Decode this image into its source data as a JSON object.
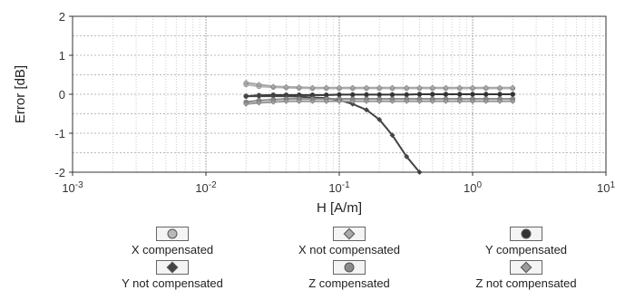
{
  "chart_data": {
    "type": "line",
    "xscale": "log",
    "xlim": [
      0.001,
      10
    ],
    "ylim": [
      -2,
      2
    ],
    "xlabel": "H [A/m]",
    "ylabel": "Error [dB]",
    "x_tick_labels": [
      {
        "base": "10",
        "exp": "-3"
      },
      {
        "base": "10",
        "exp": "-2"
      },
      {
        "base": "10",
        "exp": "-1"
      },
      {
        "base": "10",
        "exp": "0"
      },
      {
        "base": "10",
        "exp": "1"
      }
    ],
    "y_tick_labels": [
      "2",
      "1",
      "0",
      "-1",
      "-2"
    ],
    "y_ticks": [
      2,
      1,
      0,
      -1,
      -2
    ],
    "grid": true,
    "legend_position": "bottom",
    "series": [
      {
        "name": "X compensated",
        "marker": "circle",
        "color": "#b8b8b8",
        "x": [
          0.02,
          0.025,
          0.032,
          0.04,
          0.05,
          0.063,
          0.08,
          0.1,
          0.126,
          0.16,
          0.2,
          0.25,
          0.32,
          0.4,
          0.5,
          0.63,
          0.8,
          1,
          1.26,
          1.6,
          2
        ],
        "y": [
          0.25,
          0.2,
          0.18,
          0.17,
          0.16,
          0.15,
          0.15,
          0.15,
          0.15,
          0.15,
          0.15,
          0.15,
          0.15,
          0.15,
          0.15,
          0.15,
          0.15,
          0.15,
          0.15,
          0.15,
          0.15
        ]
      },
      {
        "name": "X not compensated",
        "marker": "diamond",
        "color": "#a8a8a8",
        "x": [
          0.02,
          0.025,
          0.032,
          0.04,
          0.05,
          0.063,
          0.08,
          0.1,
          0.126,
          0.16,
          0.2,
          0.25,
          0.32,
          0.4,
          0.5,
          0.63,
          0.8,
          1,
          1.26,
          1.6,
          2
        ],
        "y": [
          0.3,
          0.25,
          0.2,
          0.19,
          0.18,
          0.17,
          0.17,
          0.17,
          0.17,
          0.17,
          0.17,
          0.17,
          0.17,
          0.17,
          0.17,
          0.17,
          0.17,
          0.17,
          0.17,
          0.17,
          0.17
        ]
      },
      {
        "name": "Y compensated",
        "marker": "circle",
        "color": "#333333",
        "x": [
          0.02,
          0.025,
          0.032,
          0.04,
          0.05,
          0.063,
          0.08,
          0.1,
          0.126,
          0.16,
          0.2,
          0.25,
          0.32,
          0.4,
          0.5,
          0.63,
          0.8,
          1,
          1.26,
          1.6,
          2
        ],
        "y": [
          -0.05,
          -0.03,
          -0.02,
          -0.02,
          -0.02,
          -0.02,
          -0.02,
          -0.01,
          -0.01,
          -0.01,
          -0.01,
          -0.01,
          -0.01,
          0,
          0,
          0,
          0,
          0,
          0,
          0,
          0
        ]
      },
      {
        "name": "Y not compensated",
        "marker": "diamond",
        "color": "#444444",
        "x": [
          0.02,
          0.025,
          0.032,
          0.04,
          0.05,
          0.063,
          0.08,
          0.1,
          0.126,
          0.16,
          0.2,
          0.25,
          0.32,
          0.4
        ],
        "y": [
          -0.05,
          -0.05,
          -0.05,
          -0.05,
          -0.06,
          -0.08,
          -0.1,
          -0.15,
          -0.25,
          -0.4,
          -0.65,
          -1.05,
          -1.6,
          -2
        ]
      },
      {
        "name": "Z compensated",
        "marker": "circle",
        "color": "#8a8a8a",
        "x": [
          0.02,
          0.025,
          0.032,
          0.04,
          0.05,
          0.063,
          0.08,
          0.1,
          0.126,
          0.16,
          0.2,
          0.25,
          0.32,
          0.4,
          0.5,
          0.63,
          0.8,
          1,
          1.26,
          1.6,
          2
        ],
        "y": [
          -0.2,
          -0.16,
          -0.14,
          -0.12,
          -0.12,
          -0.12,
          -0.12,
          -0.12,
          -0.12,
          -0.12,
          -0.12,
          -0.12,
          -0.12,
          -0.12,
          -0.12,
          -0.12,
          -0.12,
          -0.12,
          -0.12,
          -0.12,
          -0.12
        ]
      },
      {
        "name": "Z not compensated",
        "marker": "diamond",
        "color": "#9a9a9a",
        "x": [
          0.02,
          0.025,
          0.032,
          0.04,
          0.05,
          0.063,
          0.08,
          0.1,
          0.126,
          0.16,
          0.2,
          0.25,
          0.32,
          0.4,
          0.5,
          0.63,
          0.8,
          1,
          1.26,
          1.6,
          2
        ],
        "y": [
          -0.25,
          -0.22,
          -0.2,
          -0.18,
          -0.18,
          -0.18,
          -0.18,
          -0.18,
          -0.18,
          -0.18,
          -0.18,
          -0.18,
          -0.18,
          -0.18,
          -0.18,
          -0.18,
          -0.18,
          -0.18,
          -0.18,
          -0.18,
          -0.18
        ]
      }
    ]
  },
  "legend": {
    "items": [
      {
        "label": "X compensated",
        "marker": "circle",
        "color": "#b8b8b8"
      },
      {
        "label": "X not compensated",
        "marker": "diamond",
        "color": "#a8a8a8"
      },
      {
        "label": "Y compensated",
        "marker": "circle",
        "color": "#333333"
      },
      {
        "label": "Y not compensated",
        "marker": "diamond",
        "color": "#444444"
      },
      {
        "label": "Z compensated",
        "marker": "circle",
        "color": "#8a8a8a"
      },
      {
        "label": "Z not compensated",
        "marker": "diamond",
        "color": "#9a9a9a"
      }
    ]
  }
}
